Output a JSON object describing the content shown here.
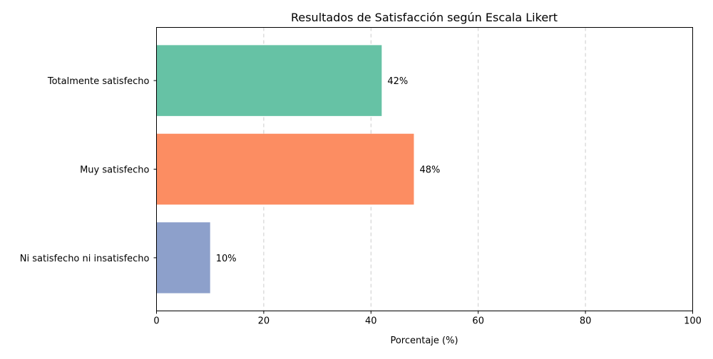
{
  "chart_data": {
    "type": "bar",
    "orientation": "horizontal",
    "title": "Resultados de Satisfacción según Escala Likert",
    "xlabel": "Porcentaje (%)",
    "ylabel": "",
    "xlim": [
      0,
      100
    ],
    "xticks": [
      0,
      20,
      40,
      60,
      80,
      100
    ],
    "grid": "x-dashed",
    "categories": [
      "Ni satisfecho ni insatisfecho",
      "Muy satisfecho",
      "Totalmente satisfecho"
    ],
    "values": [
      10,
      48,
      42
    ],
    "value_labels": [
      "10%",
      "48%",
      "42%"
    ],
    "colors": [
      "#8da0cb",
      "#fc8d62",
      "#66c2a5"
    ]
  }
}
